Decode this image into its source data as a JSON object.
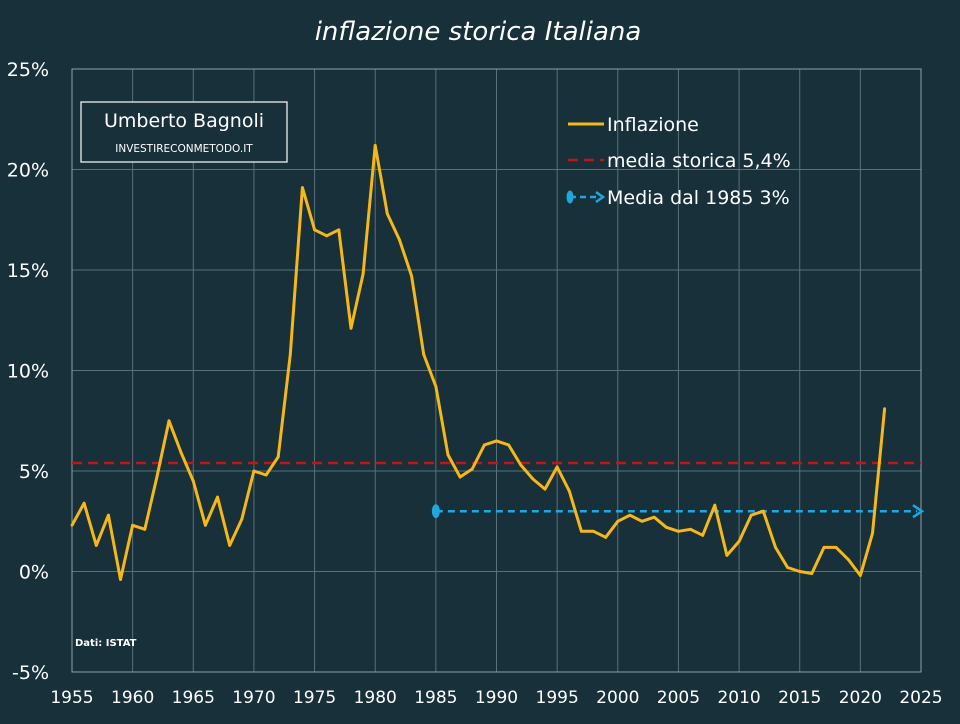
{
  "chart_data": {
    "type": "line",
    "title": "inflazione storica Italiana",
    "xlim": [
      1955,
      2025
    ],
    "ylim": [
      -5,
      25
    ],
    "x_ticks": [
      1955,
      1960,
      1965,
      1970,
      1975,
      1980,
      1985,
      1990,
      1995,
      2000,
      2005,
      2010,
      2015,
      2020,
      2025
    ],
    "x_tick_labels": [
      "1955",
      "1960",
      "1965",
      "1970",
      "1975",
      "1980",
      "1985",
      "1990",
      "1995",
      "2000",
      "2005",
      "2010",
      "2015",
      "2020",
      "2025"
    ],
    "y_ticks": [
      -5,
      0,
      5,
      10,
      15,
      20,
      25
    ],
    "y_tick_labels": [
      "-5%",
      "0%",
      "5%",
      "10%",
      "15%",
      "20%",
      "25%"
    ],
    "grid": true,
    "legend_position": "top-right",
    "series": [
      {
        "name": "Inflazione",
        "color": "#f5b818",
        "style": "solid",
        "x": [
          1955,
          1956,
          1957,
          1958,
          1959,
          1960,
          1961,
          1962,
          1963,
          1964,
          1965,
          1966,
          1967,
          1968,
          1969,
          1970,
          1971,
          1972,
          1973,
          1974,
          1975,
          1976,
          1977,
          1978,
          1979,
          1980,
          1981,
          1982,
          1983,
          1984,
          1985,
          1986,
          1987,
          1988,
          1989,
          1990,
          1991,
          1992,
          1993,
          1994,
          1995,
          1996,
          1997,
          1998,
          1999,
          2000,
          2001,
          2002,
          2003,
          2004,
          2005,
          2006,
          2007,
          2008,
          2009,
          2010,
          2011,
          2012,
          2013,
          2014,
          2015,
          2016,
          2017,
          2018,
          2019,
          2020,
          2021,
          2022
        ],
        "values": [
          2.3,
          3.4,
          1.3,
          2.8,
          -0.4,
          2.3,
          2.1,
          4.7,
          7.5,
          5.9,
          4.5,
          2.3,
          3.7,
          1.3,
          2.6,
          5.0,
          4.8,
          5.7,
          10.8,
          19.1,
          17.0,
          16.7,
          17.0,
          12.1,
          14.8,
          21.2,
          17.8,
          16.5,
          14.7,
          10.8,
          9.2,
          5.8,
          4.7,
          5.1,
          6.3,
          6.5,
          6.3,
          5.3,
          4.6,
          4.1,
          5.2,
          4.0,
          2.0,
          2.0,
          1.7,
          2.5,
          2.8,
          2.5,
          2.7,
          2.2,
          2.0,
          2.1,
          1.8,
          3.3,
          0.8,
          1.5,
          2.8,
          3.0,
          1.2,
          0.2,
          0.0,
          -0.1,
          1.2,
          1.2,
          0.6,
          -0.2,
          1.9,
          8.1
        ]
      },
      {
        "name": "media storica 5,4%",
        "color": "#c0151d",
        "style": "dashed",
        "x": [
          1955,
          2025
        ],
        "values": [
          5.4,
          5.4
        ]
      },
      {
        "name": "Media dal 1985 3%",
        "color": "#1ea7e0",
        "style": "dashed-arrow",
        "x": [
          1985,
          2025
        ],
        "values": [
          3.0,
          3.0
        ]
      }
    ],
    "annotations": {
      "author": "Umberto Bagnoli",
      "website": "INVESTIRECONMETODO.IT",
      "source": "Dati: ISTAT"
    }
  }
}
